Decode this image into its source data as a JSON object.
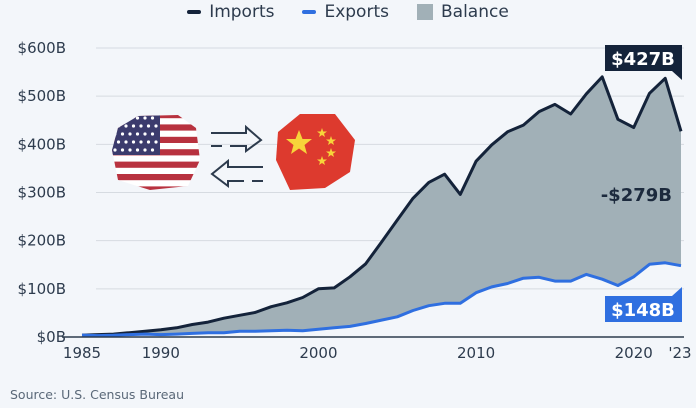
{
  "legend": {
    "items": [
      {
        "label": "Imports",
        "color": "#14233a",
        "kind": "line"
      },
      {
        "label": "Exports",
        "color": "#2f6fe0",
        "kind": "line"
      },
      {
        "label": "Balance",
        "color": "#a1b0b7",
        "kind": "area"
      }
    ]
  },
  "annotations": {
    "imports_last": "$427B",
    "balance_last": "-$279B",
    "exports_last": "$148B"
  },
  "icons": {
    "us_flag": "us-flag-icon",
    "arrow_right": "arrow-right-icon",
    "arrow_left": "arrow-left-icon",
    "china_flag": "china-flag-icon"
  },
  "source": "Source: U.S. Census Bureau",
  "chart_data": {
    "type": "area",
    "title": "",
    "xlabel": "",
    "ylabel": "",
    "ylim": [
      0,
      600
    ],
    "grid": true,
    "legend_position": "top",
    "y_ticks": [
      "$0B",
      "$100B",
      "$200B",
      "$300B",
      "$400B",
      "$500B",
      "$600B"
    ],
    "x_ticks": [
      "1985",
      "1990",
      "2000",
      "2010",
      "2020",
      "'23"
    ],
    "x": [
      1985,
      1986,
      1987,
      1988,
      1989,
      1990,
      1991,
      1992,
      1993,
      1994,
      1995,
      1996,
      1997,
      1998,
      1999,
      2000,
      2001,
      2002,
      2003,
      2004,
      2005,
      2006,
      2007,
      2008,
      2009,
      2010,
      2011,
      2012,
      2013,
      2014,
      2015,
      2016,
      2017,
      2018,
      2019,
      2020,
      2021,
      2022,
      2023
    ],
    "series": [
      {
        "name": "Imports",
        "values": [
          4,
          5,
          6,
          9,
          12,
          15,
          19,
          26,
          31,
          39,
          45,
          51,
          63,
          71,
          82,
          100,
          102,
          125,
          152,
          197,
          243,
          288,
          321,
          338,
          296,
          365,
          399,
          426,
          440,
          468,
          483,
          463,
          505,
          540,
          452,
          435,
          506,
          537,
          427
        ]
      },
      {
        "name": "Exports",
        "values": [
          4,
          3,
          3.5,
          5,
          6,
          5,
          6,
          7.5,
          9,
          9,
          12,
          12,
          13,
          14,
          13,
          16,
          19,
          22,
          28,
          35,
          42,
          55,
          65,
          70,
          70,
          92,
          104,
          111,
          122,
          124,
          116,
          116,
          130,
          120,
          107,
          125,
          151,
          154,
          148
        ]
      },
      {
        "name": "Balance",
        "values": [
          0,
          -2,
          -2.5,
          -4,
          -6,
          -10,
          -13,
          -18.5,
          -22,
          -30,
          -33,
          -39,
          -50,
          -57,
          -69,
          -84,
          -83,
          -103,
          -124,
          -162,
          -201,
          -233,
          -256,
          -268,
          -226,
          -273,
          -295,
          -315,
          -318,
          -344,
          -367,
          -347,
          -375,
          -420,
          -345,
          -310,
          -355,
          -383,
          -279
        ]
      }
    ],
    "labels": {
      "imports_2023": "$427B",
      "exports_2023": "$148B",
      "balance_2023": "-$279B"
    }
  }
}
